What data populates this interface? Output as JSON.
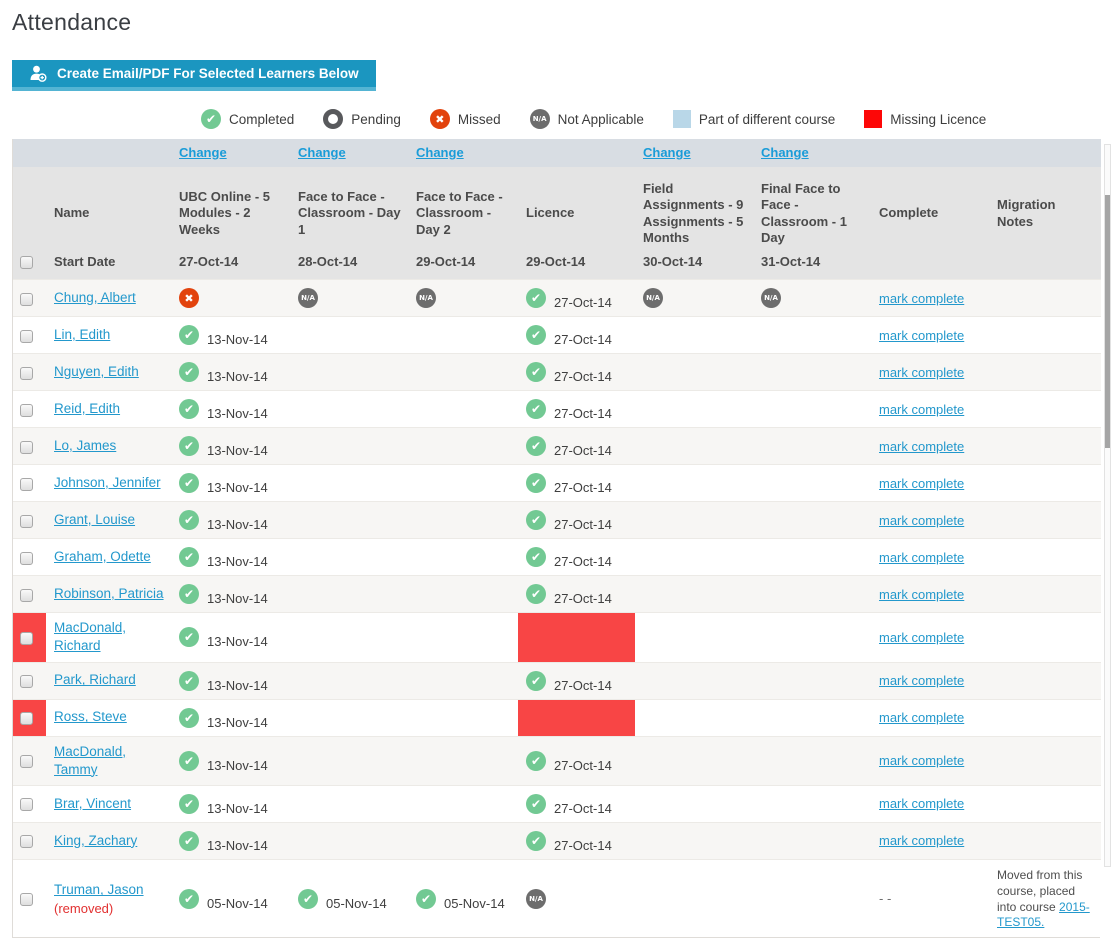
{
  "page": {
    "title": "Attendance"
  },
  "toolbar": {
    "create_button": "Create Email/PDF For Selected Learners Below"
  },
  "legend": [
    {
      "icon": "completed-icon",
      "label": "Completed"
    },
    {
      "icon": "pending-icon",
      "label": "Pending"
    },
    {
      "icon": "missed-icon",
      "label": "Missed"
    },
    {
      "icon": "not-applicable-icon",
      "label": "Not Applicable"
    },
    {
      "icon": "different-course-swatch",
      "label": "Part of different course"
    },
    {
      "icon": "missing-licence-swatch",
      "label": "Missing Licence"
    }
  ],
  "table": {
    "change_label": "Change",
    "name_header": "Name",
    "start_date_label": "Start Date",
    "na_label": "N/A",
    "removed_label": "(removed)",
    "mark_complete_label": "mark complete",
    "columns": [
      {
        "title": "UBC Online - 5 Modules - 2 Weeks",
        "date": "27-Oct-14",
        "change": true
      },
      {
        "title": "Face to Face - Classroom - Day 1",
        "date": "28-Oct-14",
        "change": true
      },
      {
        "title": "Face to Face - Classroom - Day 2",
        "date": "29-Oct-14",
        "change": true
      },
      {
        "title": "Licence",
        "date": "29-Oct-14",
        "change": false
      },
      {
        "title": "Field Assignments - 9 Assignments - 5 Months",
        "date": "30-Oct-14",
        "change": true
      },
      {
        "title": "Final Face to Face - Classroom - 1 Day",
        "date": "31-Oct-14",
        "change": true
      },
      {
        "title": "Complete",
        "date": "",
        "change": false
      },
      {
        "title": "Migration Notes",
        "date": "",
        "change": false
      }
    ],
    "rows": [
      {
        "name": "Chung, Albert",
        "flagged": false,
        "removed": false,
        "complete": "link",
        "cells": [
          {
            "status": "missed"
          },
          {
            "status": "na"
          },
          {
            "status": "na"
          },
          {
            "status": "check",
            "date": "27-Oct-14"
          },
          {
            "status": "na"
          },
          {
            "status": "na"
          }
        ]
      },
      {
        "name": "Lin, Edith",
        "flagged": false,
        "removed": false,
        "complete": "link",
        "cells": [
          {
            "status": "check",
            "date": "13-Nov-14"
          },
          {
            "status": "none"
          },
          {
            "status": "none"
          },
          {
            "status": "check",
            "date": "27-Oct-14"
          },
          {
            "status": "none"
          },
          {
            "status": "none"
          }
        ]
      },
      {
        "name": "Nguyen, Edith",
        "flagged": false,
        "removed": false,
        "complete": "link",
        "cells": [
          {
            "status": "check",
            "date": "13-Nov-14"
          },
          {
            "status": "none"
          },
          {
            "status": "none"
          },
          {
            "status": "check",
            "date": "27-Oct-14"
          },
          {
            "status": "none"
          },
          {
            "status": "none"
          }
        ]
      },
      {
        "name": "Reid, Edith",
        "flagged": false,
        "removed": false,
        "complete": "link",
        "cells": [
          {
            "status": "check",
            "date": "13-Nov-14"
          },
          {
            "status": "none"
          },
          {
            "status": "none"
          },
          {
            "status": "check",
            "date": "27-Oct-14"
          },
          {
            "status": "none"
          },
          {
            "status": "none"
          }
        ]
      },
      {
        "name": "Lo, James",
        "flagged": false,
        "removed": false,
        "complete": "link",
        "cells": [
          {
            "status": "check",
            "date": "13-Nov-14"
          },
          {
            "status": "none"
          },
          {
            "status": "none"
          },
          {
            "status": "check",
            "date": "27-Oct-14"
          },
          {
            "status": "none"
          },
          {
            "status": "none"
          }
        ]
      },
      {
        "name": "Johnson, Jennifer",
        "flagged": false,
        "removed": false,
        "complete": "link",
        "cells": [
          {
            "status": "check",
            "date": "13-Nov-14"
          },
          {
            "status": "none"
          },
          {
            "status": "none"
          },
          {
            "status": "check",
            "date": "27-Oct-14"
          },
          {
            "status": "none"
          },
          {
            "status": "none"
          }
        ]
      },
      {
        "name": "Grant, Louise",
        "flagged": false,
        "removed": false,
        "complete": "link",
        "cells": [
          {
            "status": "check",
            "date": "13-Nov-14"
          },
          {
            "status": "none"
          },
          {
            "status": "none"
          },
          {
            "status": "check",
            "date": "27-Oct-14"
          },
          {
            "status": "none"
          },
          {
            "status": "none"
          }
        ]
      },
      {
        "name": "Graham, Odette",
        "flagged": false,
        "removed": false,
        "complete": "link",
        "cells": [
          {
            "status": "check",
            "date": "13-Nov-14"
          },
          {
            "status": "none"
          },
          {
            "status": "none"
          },
          {
            "status": "check",
            "date": "27-Oct-14"
          },
          {
            "status": "none"
          },
          {
            "status": "none"
          }
        ]
      },
      {
        "name": "Robinson, Patricia",
        "flagged": false,
        "removed": false,
        "complete": "link",
        "cells": [
          {
            "status": "check",
            "date": "13-Nov-14"
          },
          {
            "status": "none"
          },
          {
            "status": "none"
          },
          {
            "status": "check",
            "date": "27-Oct-14"
          },
          {
            "status": "none"
          },
          {
            "status": "none"
          }
        ]
      },
      {
        "name": "MacDonald, Richard",
        "flagged": true,
        "removed": false,
        "complete": "link",
        "cells": [
          {
            "status": "check",
            "date": "13-Nov-14"
          },
          {
            "status": "none"
          },
          {
            "status": "none"
          },
          {
            "status": "redfill"
          },
          {
            "status": "none"
          },
          {
            "status": "none"
          }
        ]
      },
      {
        "name": "Park, Richard",
        "flagged": false,
        "removed": false,
        "complete": "link",
        "cells": [
          {
            "status": "check",
            "date": "13-Nov-14"
          },
          {
            "status": "none"
          },
          {
            "status": "none"
          },
          {
            "status": "check",
            "date": "27-Oct-14"
          },
          {
            "status": "none"
          },
          {
            "status": "none"
          }
        ]
      },
      {
        "name": "Ross, Steve",
        "flagged": true,
        "removed": false,
        "complete": "link",
        "cells": [
          {
            "status": "check",
            "date": "13-Nov-14"
          },
          {
            "status": "none"
          },
          {
            "status": "none"
          },
          {
            "status": "redfill"
          },
          {
            "status": "none"
          },
          {
            "status": "none"
          }
        ]
      },
      {
        "name": "MacDonald, Tammy",
        "flagged": false,
        "removed": false,
        "complete": "link",
        "cells": [
          {
            "status": "check",
            "date": "13-Nov-14"
          },
          {
            "status": "none"
          },
          {
            "status": "none"
          },
          {
            "status": "check",
            "date": "27-Oct-14"
          },
          {
            "status": "none"
          },
          {
            "status": "none"
          }
        ]
      },
      {
        "name": "Brar, Vincent",
        "flagged": false,
        "removed": false,
        "complete": "link",
        "cells": [
          {
            "status": "check",
            "date": "13-Nov-14"
          },
          {
            "status": "none"
          },
          {
            "status": "none"
          },
          {
            "status": "check",
            "date": "27-Oct-14"
          },
          {
            "status": "none"
          },
          {
            "status": "none"
          }
        ]
      },
      {
        "name": "King, Zachary",
        "flagged": false,
        "removed": false,
        "complete": "link",
        "cells": [
          {
            "status": "check",
            "date": "13-Nov-14"
          },
          {
            "status": "none"
          },
          {
            "status": "none"
          },
          {
            "status": "check",
            "date": "27-Oct-14"
          },
          {
            "status": "none"
          },
          {
            "status": "none"
          }
        ]
      },
      {
        "name": "Truman, Jason",
        "flagged": false,
        "removed": true,
        "complete": "- -",
        "cells": [
          {
            "status": "check",
            "date": "05-Nov-14"
          },
          {
            "status": "check",
            "date": "05-Nov-14"
          },
          {
            "status": "check",
            "date": "05-Nov-14"
          },
          {
            "status": "na"
          },
          {
            "status": "none"
          },
          {
            "status": "none"
          }
        ],
        "notes": {
          "text": "Moved from this course, placed into course ",
          "link_label": "2015-TEST05."
        }
      }
    ]
  },
  "colors": {
    "accent_blue": "#1b96c0",
    "link_blue": "#2398cc",
    "completed_green": "#72c993",
    "missed_orange": "#e2430d",
    "na_gray": "#6d6d6d",
    "missing_licence_red": "#fd0707",
    "flag_red": "#f84545",
    "different_course_blue": "#b9d7e8"
  }
}
